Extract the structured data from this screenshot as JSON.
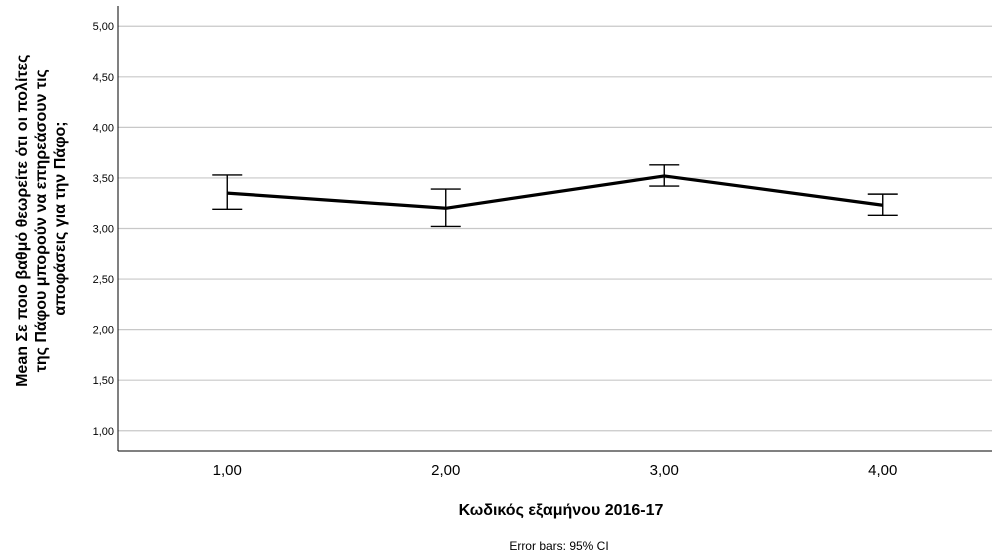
{
  "chart_data": {
    "type": "line",
    "title": "",
    "xlabel": "Κωδικός εξαμήνου 2016-17",
    "ylabel_lines": [
      "Mean Σε ποιο βαθμό θεωρείτε ότι οι πολίτες",
      "της Πάφου μπορούν να επηρεάσουν τις",
      "αποφάσεις για την Πάφο;"
    ],
    "footnote": "Error bars: 95% CI",
    "categories": [
      "1,00",
      "2,00",
      "3,00",
      "4,00"
    ],
    "values": [
      3.35,
      3.2,
      3.52,
      3.23
    ],
    "ci_lower": [
      3.19,
      3.02,
      3.42,
      3.13
    ],
    "ci_upper": [
      3.53,
      3.39,
      3.63,
      3.34
    ],
    "ylim": [
      0.8,
      5.2
    ],
    "yticks": [
      1.0,
      1.5,
      2.0,
      2.5,
      3.0,
      3.5,
      4.0,
      4.5,
      5.0
    ],
    "ytick_labels": [
      "1,00",
      "1,50",
      "2,00",
      "2,50",
      "3,00",
      "3,50",
      "4,00",
      "4,50",
      "5,00"
    ],
    "grid": true,
    "line_color": "#000000",
    "grid_color": "#c8c8c8"
  }
}
